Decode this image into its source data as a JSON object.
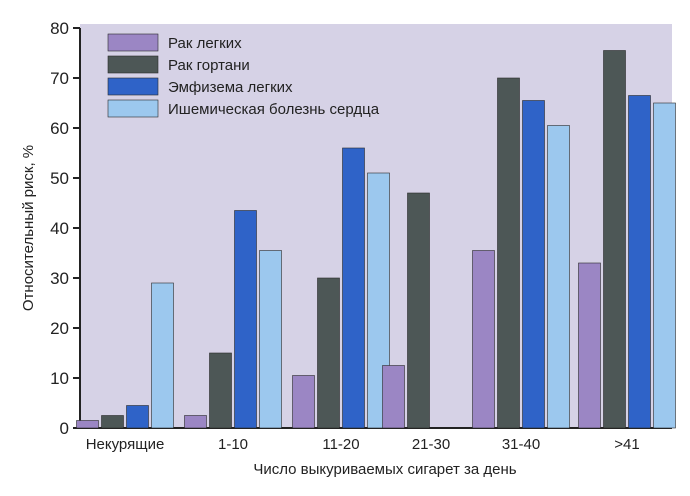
{
  "chart_data": {
    "type": "bar",
    "xlabel": "Число выкуриваемых сигарет за день",
    "ylabel": "Относительный риск, %",
    "ylim": [
      0,
      80
    ],
    "yticks": [
      0,
      10,
      20,
      30,
      40,
      50,
      60,
      70,
      80
    ],
    "grid": false,
    "legend_position": "top-left",
    "categories": [
      "Некурящие",
      "1-10",
      "11-20",
      "21-30",
      "31-40",
      ">41"
    ],
    "series": [
      {
        "name": "Рак легких",
        "color": "#9b86c4",
        "values": [
          1.5,
          2.5,
          10.5,
          12.5,
          35.5,
          33
        ]
      },
      {
        "name": "Рак гортани",
        "color": "#4d5756",
        "values": [
          2.5,
          15,
          30,
          47,
          70,
          75.5
        ]
      },
      {
        "name": "Эмфизема легких",
        "color": "#2f63c8",
        "values": [
          4.5,
          43.5,
          56,
          null,
          65.5,
          66.5
        ]
      },
      {
        "name": "Ишемическая болезнь сердца",
        "color": "#9cc8ee",
        "values": [
          29,
          35.5,
          51,
          null,
          60.5,
          65
        ]
      }
    ],
    "background_color": "#d6d2e6"
  }
}
